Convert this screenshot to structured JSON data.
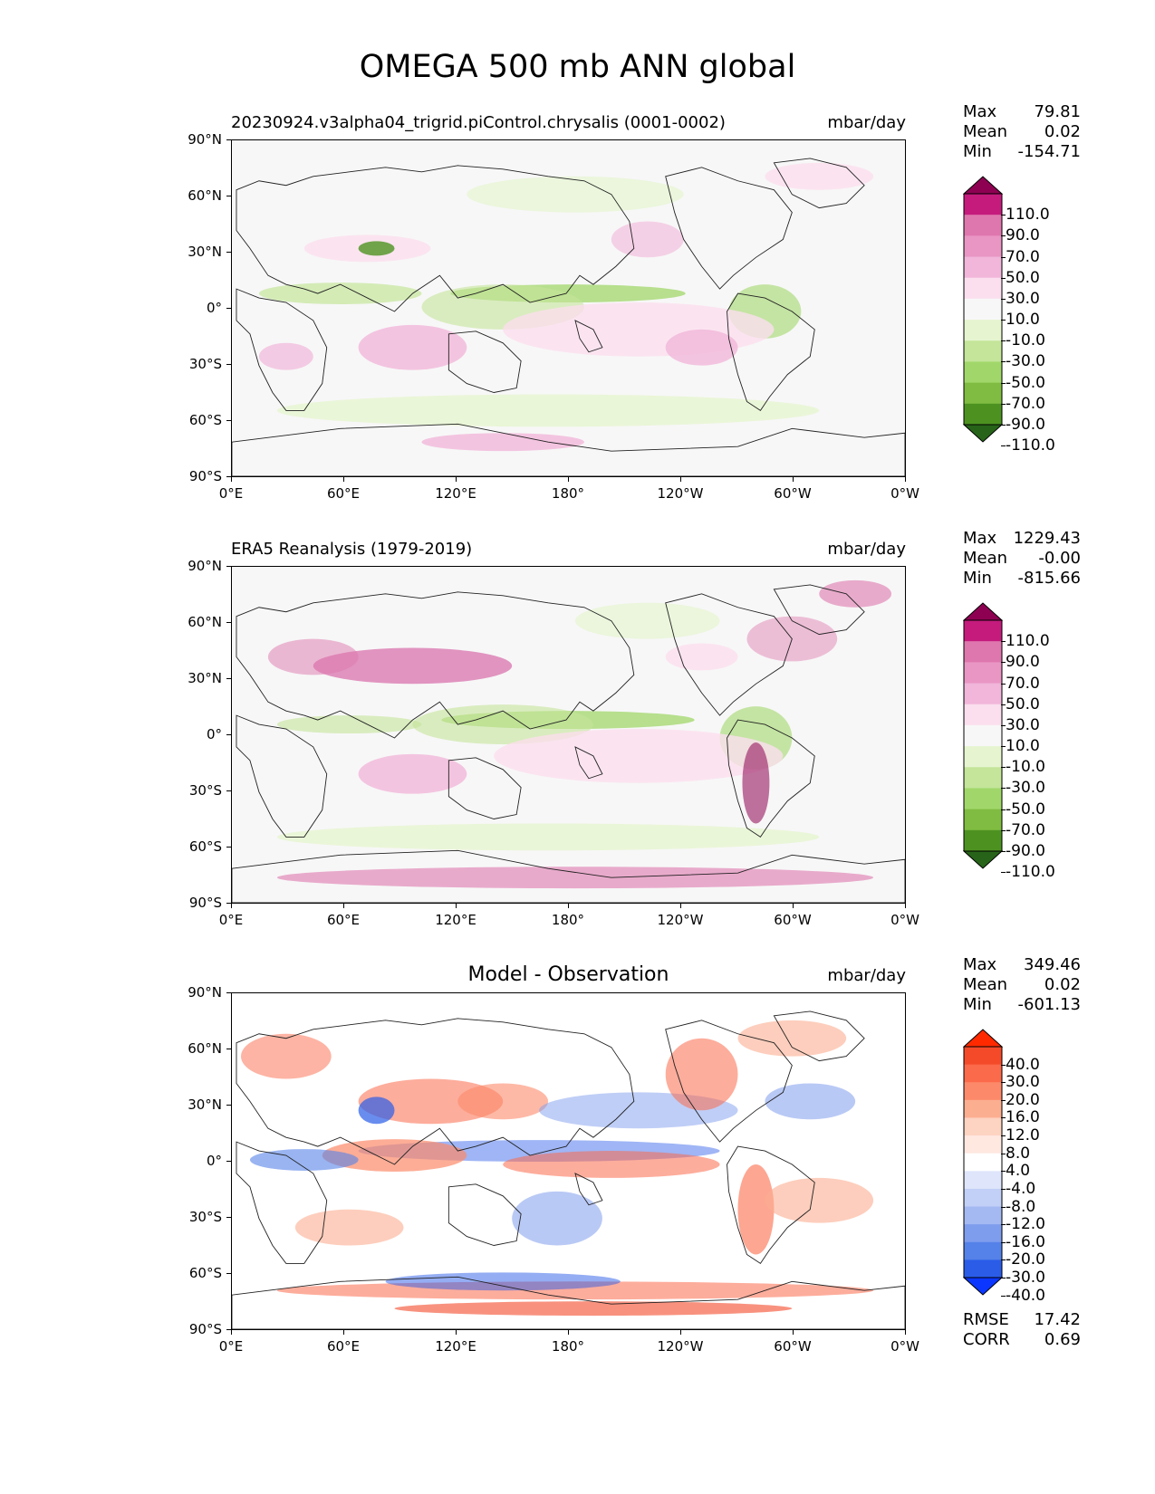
{
  "figure": {
    "title": "OMEGA 500 mb ANN global"
  },
  "axes": {
    "lat_labels": [
      "90°N",
      "60°N",
      "30°N",
      "0°",
      "30°S",
      "60°S",
      "90°S"
    ],
    "lon_labels": [
      "0°E",
      "60°E",
      "120°E",
      "180°",
      "120°W",
      "60°W",
      "0°W"
    ]
  },
  "panels": [
    {
      "title": "20230924.v3alpha04_trigrid.piControl.chrysalis (0001-0002)",
      "title_style": "left",
      "units": "mbar/day",
      "stats": [
        {
          "label": "Max",
          "value": "79.81"
        },
        {
          "label": "Mean",
          "value": "0.02"
        },
        {
          "label": "Min",
          "value": "-154.71"
        }
      ],
      "colorbar": {
        "labels": [
          "110.0",
          "90.0",
          "70.0",
          "50.0",
          "30.0",
          "10.0",
          "-10.0",
          "-30.0",
          "-50.0",
          "-70.0",
          "-90.0",
          "-110.0"
        ],
        "colors": [
          "#8e0152",
          "#c51b7d",
          "#de77ae",
          "#e996c4",
          "#f1b6da",
          "#fbdfee",
          "#f7f7f7",
          "#e6f5d0",
          "#c4e59a",
          "#a1d76a",
          "#7fbc41",
          "#4d9221",
          "#276419"
        ]
      }
    },
    {
      "title": "ERA5 Reanalysis (1979-2019)",
      "title_style": "left",
      "units": "mbar/day",
      "stats": [
        {
          "label": "Max",
          "value": "1229.43"
        },
        {
          "label": "Mean",
          "value": "-0.00"
        },
        {
          "label": "Min",
          "value": "-815.66"
        }
      ],
      "colorbar": {
        "labels": [
          "110.0",
          "90.0",
          "70.0",
          "50.0",
          "30.0",
          "10.0",
          "-10.0",
          "-30.0",
          "-50.0",
          "-70.0",
          "-90.0",
          "-110.0"
        ],
        "colors": [
          "#8e0152",
          "#c51b7d",
          "#de77ae",
          "#e996c4",
          "#f1b6da",
          "#fbdfee",
          "#f7f7f7",
          "#e6f5d0",
          "#c4e59a",
          "#a1d76a",
          "#7fbc41",
          "#4d9221",
          "#276419"
        ]
      }
    },
    {
      "title": "Model - Observation",
      "title_style": "center",
      "units": "mbar/day",
      "stats": [
        {
          "label": "Max",
          "value": "349.46"
        },
        {
          "label": "Mean",
          "value": "0.02"
        },
        {
          "label": "Min",
          "value": "-601.13"
        }
      ],
      "extra_stats": [
        {
          "label": "RMSE",
          "value": "17.42"
        },
        {
          "label": "CORR",
          "value": "0.69"
        }
      ],
      "colorbar": {
        "labels": [
          "40.0",
          "30.0",
          "20.0",
          "16.0",
          "12.0",
          "8.0",
          "4.0",
          "-4.0",
          "-8.0",
          "-12.0",
          "-16.0",
          "-20.0",
          "-30.0",
          "-40.0"
        ],
        "colors": [
          "#ff2a00",
          "#f44a2a",
          "#fb6a4a",
          "#fc8a6a",
          "#fcae91",
          "#fdd3c2",
          "#fee8e0",
          "#ffffff",
          "#dfe6fb",
          "#c2d0f7",
          "#a4b8f2",
          "#7f9ded",
          "#5582e8",
          "#2a5ce8",
          "#0a36ff"
        ]
      }
    }
  ]
}
